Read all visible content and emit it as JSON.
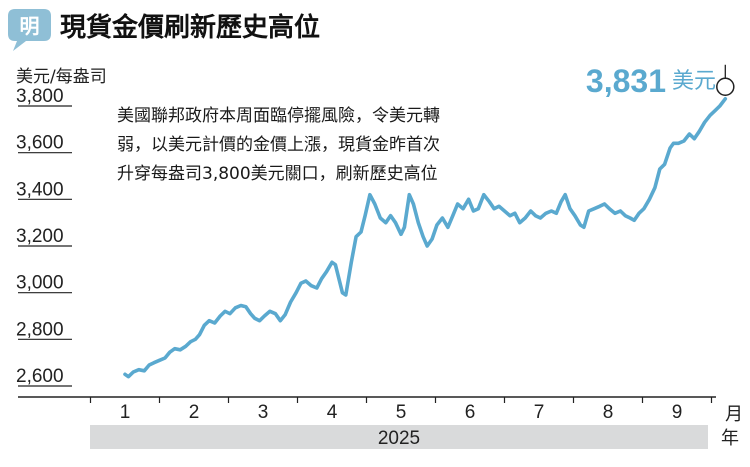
{
  "header": {
    "badge": "明",
    "title": "現貨金價刷新歷史高位"
  },
  "colors": {
    "line": "#5aa9cf",
    "badge": "#8fbfd6",
    "year_band": "#d9dadb",
    "axis": "#222222"
  },
  "chart_data": {
    "type": "line",
    "title": "現貨金價刷新歷史高位",
    "ylabel": "美元/每盎司",
    "xlabel": "月",
    "year_label": "2025",
    "xunit": "年",
    "ylim": [
      2560,
      3900
    ],
    "yticks": [
      2600,
      2800,
      3000,
      3200,
      3400,
      3600,
      3800
    ],
    "ytick_labels": [
      "2,600",
      "2,800",
      "3,000",
      "3,200",
      "3,400",
      "3,600",
      "3,800"
    ],
    "months": [
      "1",
      "2",
      "3",
      "4",
      "5",
      "6",
      "7",
      "8",
      "9"
    ],
    "grid": false,
    "annotation_lines": [
      "美國聯邦政府本周面臨停擺風險，令美元轉",
      "弱，以美元計價的金價上漲，現貨金昨首次",
      "升穿每盎司3,800美元關口，刷新歷史高位"
    ],
    "last_value_label": "3,831",
    "last_value_unit": "美元",
    "last_value": 3831,
    "series": [
      {
        "values": [
          [
            1.0,
            2650
          ],
          [
            1.05,
            2640
          ],
          [
            1.12,
            2660
          ],
          [
            1.2,
            2670
          ],
          [
            1.28,
            2665
          ],
          [
            1.35,
            2690
          ],
          [
            1.42,
            2700
          ],
          [
            1.5,
            2710
          ],
          [
            1.58,
            2720
          ],
          [
            1.65,
            2745
          ],
          [
            1.72,
            2760
          ],
          [
            1.8,
            2755
          ],
          [
            1.88,
            2770
          ],
          [
            1.95,
            2790
          ],
          [
            2.02,
            2800
          ],
          [
            2.08,
            2820
          ],
          [
            2.15,
            2860
          ],
          [
            2.22,
            2880
          ],
          [
            2.3,
            2870
          ],
          [
            2.38,
            2900
          ],
          [
            2.45,
            2920
          ],
          [
            2.52,
            2910
          ],
          [
            2.6,
            2935
          ],
          [
            2.68,
            2945
          ],
          [
            2.75,
            2940
          ],
          [
            2.82,
            2910
          ],
          [
            2.88,
            2890
          ],
          [
            2.95,
            2880
          ],
          [
            3.02,
            2900
          ],
          [
            3.1,
            2920
          ],
          [
            3.18,
            2910
          ],
          [
            3.25,
            2880
          ],
          [
            3.32,
            2905
          ],
          [
            3.4,
            2960
          ],
          [
            3.48,
            3000
          ],
          [
            3.55,
            3040
          ],
          [
            3.62,
            3050
          ],
          [
            3.7,
            3030
          ],
          [
            3.78,
            3020
          ],
          [
            3.85,
            3060
          ],
          [
            3.92,
            3090
          ],
          [
            4.0,
            3130
          ],
          [
            4.05,
            3120
          ],
          [
            4.1,
            3060
          ],
          [
            4.15,
            3000
          ],
          [
            4.2,
            2990
          ],
          [
            4.28,
            3130
          ],
          [
            4.35,
            3240
          ],
          [
            4.42,
            3260
          ],
          [
            4.48,
            3330
          ],
          [
            4.55,
            3420
          ],
          [
            4.62,
            3380
          ],
          [
            4.7,
            3320
          ],
          [
            4.78,
            3300
          ],
          [
            4.85,
            3330
          ],
          [
            4.92,
            3300
          ],
          [
            5.0,
            3250
          ],
          [
            5.05,
            3280
          ],
          [
            5.12,
            3420
          ],
          [
            5.18,
            3380
          ],
          [
            5.25,
            3300
          ],
          [
            5.32,
            3240
          ],
          [
            5.38,
            3200
          ],
          [
            5.45,
            3230
          ],
          [
            5.52,
            3290
          ],
          [
            5.6,
            3320
          ],
          [
            5.68,
            3280
          ],
          [
            5.75,
            3330
          ],
          [
            5.82,
            3380
          ],
          [
            5.9,
            3360
          ],
          [
            5.98,
            3400
          ],
          [
            6.05,
            3350
          ],
          [
            6.12,
            3360
          ],
          [
            6.2,
            3420
          ],
          [
            6.28,
            3390
          ],
          [
            6.35,
            3360
          ],
          [
            6.42,
            3370
          ],
          [
            6.5,
            3350
          ],
          [
            6.58,
            3330
          ],
          [
            6.65,
            3340
          ],
          [
            6.72,
            3300
          ],
          [
            6.8,
            3320
          ],
          [
            6.88,
            3350
          ],
          [
            6.95,
            3330
          ],
          [
            7.02,
            3320
          ],
          [
            7.1,
            3340
          ],
          [
            7.18,
            3350
          ],
          [
            7.25,
            3340
          ],
          [
            7.32,
            3390
          ],
          [
            7.38,
            3420
          ],
          [
            7.45,
            3360
          ],
          [
            7.52,
            3330
          ],
          [
            7.6,
            3290
          ],
          [
            7.65,
            3280
          ],
          [
            7.72,
            3350
          ],
          [
            7.8,
            3360
          ],
          [
            7.88,
            3370
          ],
          [
            7.95,
            3380
          ],
          [
            8.02,
            3360
          ],
          [
            8.1,
            3340
          ],
          [
            8.18,
            3350
          ],
          [
            8.25,
            3330
          ],
          [
            8.32,
            3320
          ],
          [
            8.38,
            3310
          ],
          [
            8.45,
            3340
          ],
          [
            8.52,
            3360
          ],
          [
            8.6,
            3400
          ],
          [
            8.68,
            3450
          ],
          [
            8.75,
            3530
          ],
          [
            8.82,
            3550
          ],
          [
            8.9,
            3620
          ],
          [
            8.95,
            3640
          ],
          [
            9.02,
            3640
          ],
          [
            9.1,
            3650
          ],
          [
            9.18,
            3680
          ],
          [
            9.25,
            3660
          ],
          [
            9.32,
            3690
          ],
          [
            9.4,
            3730
          ],
          [
            9.48,
            3760
          ],
          [
            9.55,
            3780
          ],
          [
            9.62,
            3800
          ],
          [
            9.7,
            3831
          ]
        ]
      }
    ]
  }
}
